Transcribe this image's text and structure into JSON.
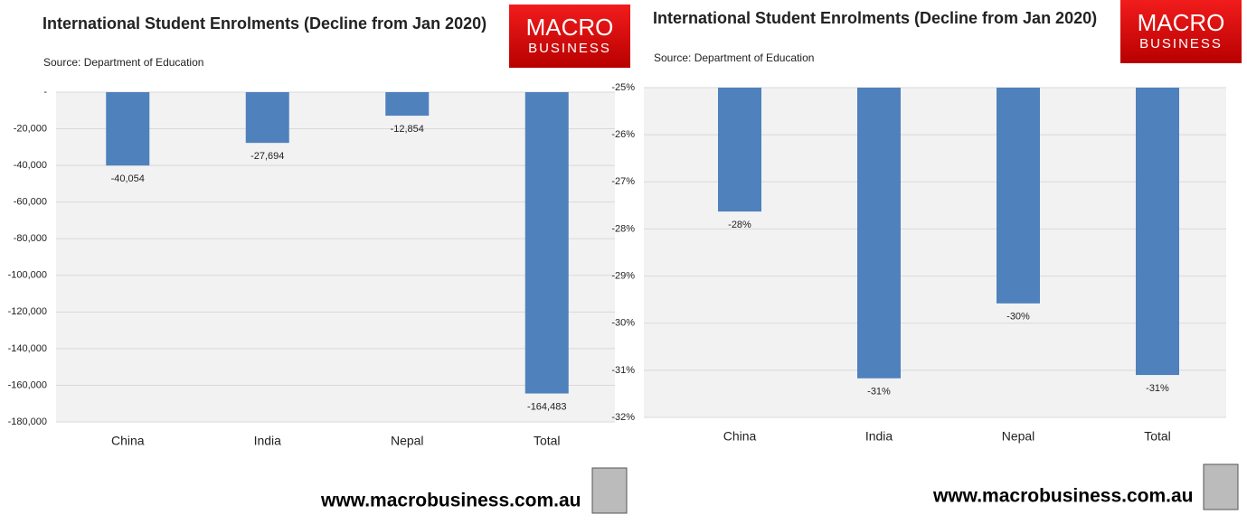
{
  "chart_data": [
    {
      "type": "bar",
      "title": "International Student Enrolments (Decline from Jan 2020)",
      "source": "Source: Department of Education",
      "brand": [
        "MACRO",
        "BUSINESS"
      ],
      "website": "www.macrobusiness.com.au",
      "categories": [
        "China",
        "India",
        "Nepal",
        "Total"
      ],
      "values": [
        -40054,
        -27694,
        -12854,
        -164483
      ],
      "value_labels": [
        "-40,054",
        "-27,694",
        "-12,854",
        "-164,483"
      ],
      "color": "#4f81bd",
      "ylim": [
        -180000,
        0
      ],
      "yticks": [
        {
          "value": 0,
          "label": "-"
        },
        {
          "value": -20000,
          "label": "-20,000"
        },
        {
          "value": -40000,
          "label": "-40,000"
        },
        {
          "value": -60000,
          "label": "-60,000"
        },
        {
          "value": -80000,
          "label": "-80,000"
        },
        {
          "value": -100000,
          "label": "-100,000"
        },
        {
          "value": -120000,
          "label": "-120,000"
        },
        {
          "value": -140000,
          "label": "-140,000"
        },
        {
          "value": -160000,
          "label": "-160,000"
        },
        {
          "value": -180000,
          "label": "-180,000"
        }
      ],
      "grid": true
    },
    {
      "type": "bar",
      "title": "International Student Enrolments (Decline from Jan 2020)",
      "source": "Source: Department of Education",
      "brand": [
        "MACRO",
        "BUSINESS"
      ],
      "website": "www.macrobusiness.com.au",
      "categories": [
        "China",
        "India",
        "Nepal",
        "Total"
      ],
      "values": [
        -27.63,
        -31.17,
        -29.58,
        -31.1
      ],
      "value_labels": [
        "-28%",
        "-31%",
        "-30%",
        "-31%"
      ],
      "color": "#4f81bd",
      "ylim": [
        -32,
        -25
      ],
      "yticks": [
        {
          "value": -25,
          "label": "-25%"
        },
        {
          "value": -26,
          "label": "-26%"
        },
        {
          "value": -27,
          "label": "-27%"
        },
        {
          "value": -28,
          "label": "-28%"
        },
        {
          "value": -29,
          "label": "-29%"
        },
        {
          "value": -30,
          "label": "-30%"
        },
        {
          "value": -31,
          "label": "-31%"
        },
        {
          "value": -32,
          "label": "-32%"
        }
      ],
      "grid": true
    }
  ]
}
